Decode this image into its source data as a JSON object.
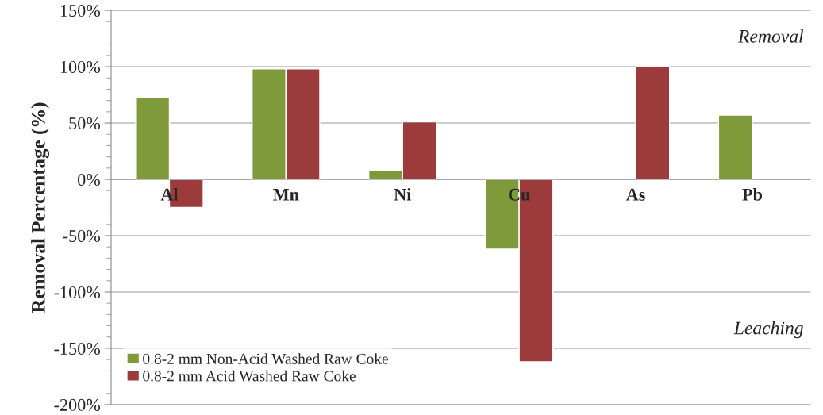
{
  "chart_data": {
    "type": "bar",
    "ylabel": "Removal Percentage (%)",
    "categories": [
      "Al",
      "Mn",
      "Ni",
      "Cu",
      "As",
      "Pb"
    ],
    "series": [
      {
        "name": "0.8-2 mm Non-Acid Washed Raw Coke",
        "color": "#7f9a3a",
        "values": [
          73,
          98,
          8,
          -62,
          null,
          57
        ]
      },
      {
        "name": "0.8-2 mm Acid Washed Raw Coke",
        "color": "#9b3b3b",
        "values": [
          -25,
          98,
          51,
          -162,
          100,
          null
        ]
      }
    ],
    "ylim": [
      -200,
      150
    ],
    "yticks": [
      {
        "value": -200,
        "label": "-200%"
      },
      {
        "value": -150,
        "label": "-150%"
      },
      {
        "value": -100,
        "label": "-100%"
      },
      {
        "value": -50,
        "label": "-50%"
      },
      {
        "value": 0,
        "label": "0%"
      },
      {
        "value": 50,
        "label": "50%"
      },
      {
        "value": 100,
        "label": "100%"
      },
      {
        "value": 150,
        "label": "150%"
      }
    ],
    "grid": "y",
    "legend": "bottom left",
    "annotations": [
      "Removal",
      "Leaching"
    ]
  }
}
